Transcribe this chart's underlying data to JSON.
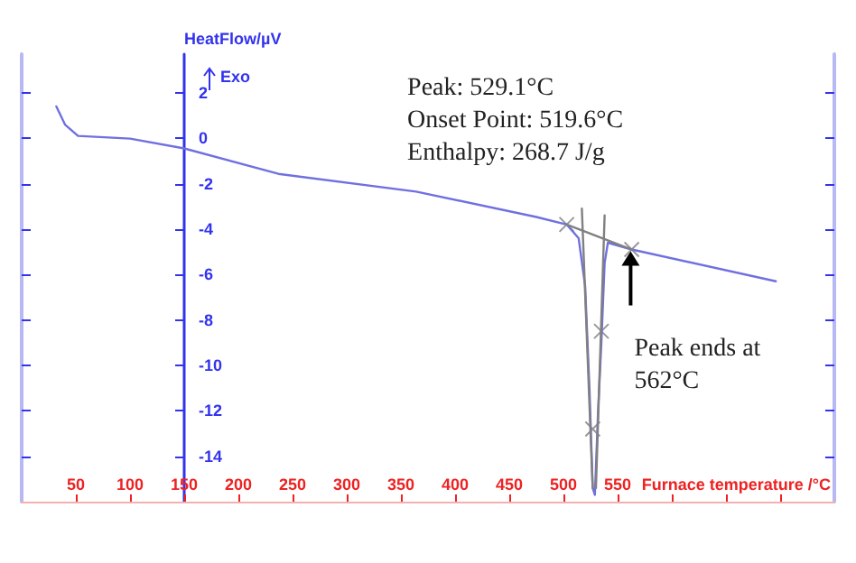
{
  "chart_data": {
    "type": "line",
    "xlabel": "Furnace temperature /°C",
    "ylabel": "HeatFlow/µV",
    "annotations": [
      "Exo",
      "Peak: 529.1°C",
      "Onset Point: 519.6°C",
      "Enthalpy: 268.7 J/g",
      {
        "text": "Peak ends at\n562°C",
        "x": 562,
        "y": -4.9
      }
    ],
    "xlim": [
      0,
      750
    ],
    "ylim": [
      -16,
      3.7
    ],
    "xticks": [
      50,
      100,
      150,
      200,
      250,
      300,
      350,
      400,
      450,
      500,
      550,
      {
        "value": 600,
        "label": null
      },
      {
        "value": 650,
        "label": null
      },
      {
        "value": 700,
        "label": null
      }
    ],
    "yticks": [
      -14,
      -12,
      -10,
      -8,
      -6,
      -4,
      -2,
      0,
      2
    ],
    "grid": false,
    "line_style": "solid",
    "marker": "none",
    "series": [
      {
        "color": "#7070e0",
        "x": [
          32,
          40,
          52,
          100,
          150,
          237,
          364,
          475,
          503,
          514,
          520,
          524,
          527,
          529,
          532,
          535,
          538,
          541,
          563,
          696
        ],
        "values": [
          1.4,
          0.6,
          0.1,
          -0.02,
          -0.45,
          -1.57,
          -2.35,
          -3.47,
          -3.8,
          -4.4,
          -6.5,
          -11,
          -15.4,
          -15.7,
          -12,
          -9,
          -5.5,
          -4.6,
          -4.9,
          -6.3
        ]
      },
      {
        "color": "#808080",
        "x": [
          503,
          563
        ],
        "values": [
          -3.8,
          -4.9
        ]
      },
      {
        "color": "#808080",
        "x": [
          517,
          527
        ],
        "values": [
          -3.1,
          -15.4
        ]
      },
      {
        "color": "#808080",
        "x": [
          538,
          530
        ],
        "values": [
          -3.4,
          -15.4
        ]
      },
      {
        "type": "scatter",
        "marker": "cross",
        "color": "#808080",
        "x": [
          503,
          563,
          527,
          535
        ],
        "values": [
          -3.8,
          -4.9,
          -12.8,
          -8.5
        ]
      }
    ]
  }
}
